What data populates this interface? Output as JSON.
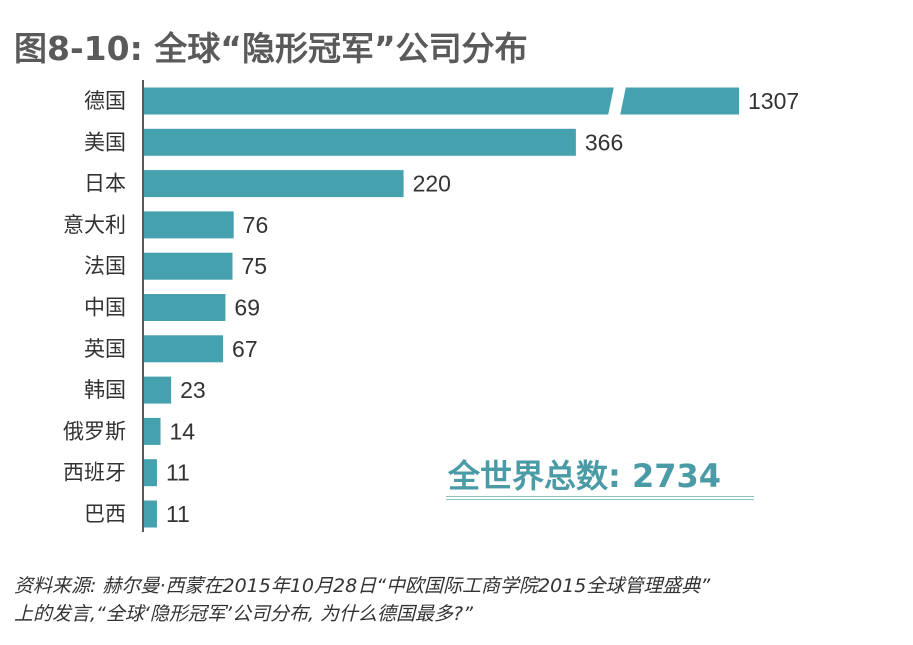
{
  "chart_data": {
    "type": "bar",
    "orientation": "horizontal",
    "title": "图8-10: 全球“隐形冠军”公司分布",
    "categories": [
      "德国",
      "美国",
      "日本",
      "意大利",
      "法国",
      "中国",
      "英国",
      "韩国",
      "俄罗斯",
      "西班牙",
      "巴西"
    ],
    "values": [
      1307,
      366,
      220,
      76,
      75,
      69,
      67,
      23,
      14,
      11,
      11
    ],
    "broken_axis_category": "德国",
    "bar_color": "#45a1ae",
    "annotation": "全世界总数: 2734",
    "annotation_color": "#4a9ba6",
    "source": [
      "资料来源: 赫尔曼·西蒙在2015年10月28日“中欧国际工商学院2015全球管理盛典”",
      "上的发言,“全球‘隐形冠军’公司分布, 为什么德国最多?”"
    ]
  }
}
